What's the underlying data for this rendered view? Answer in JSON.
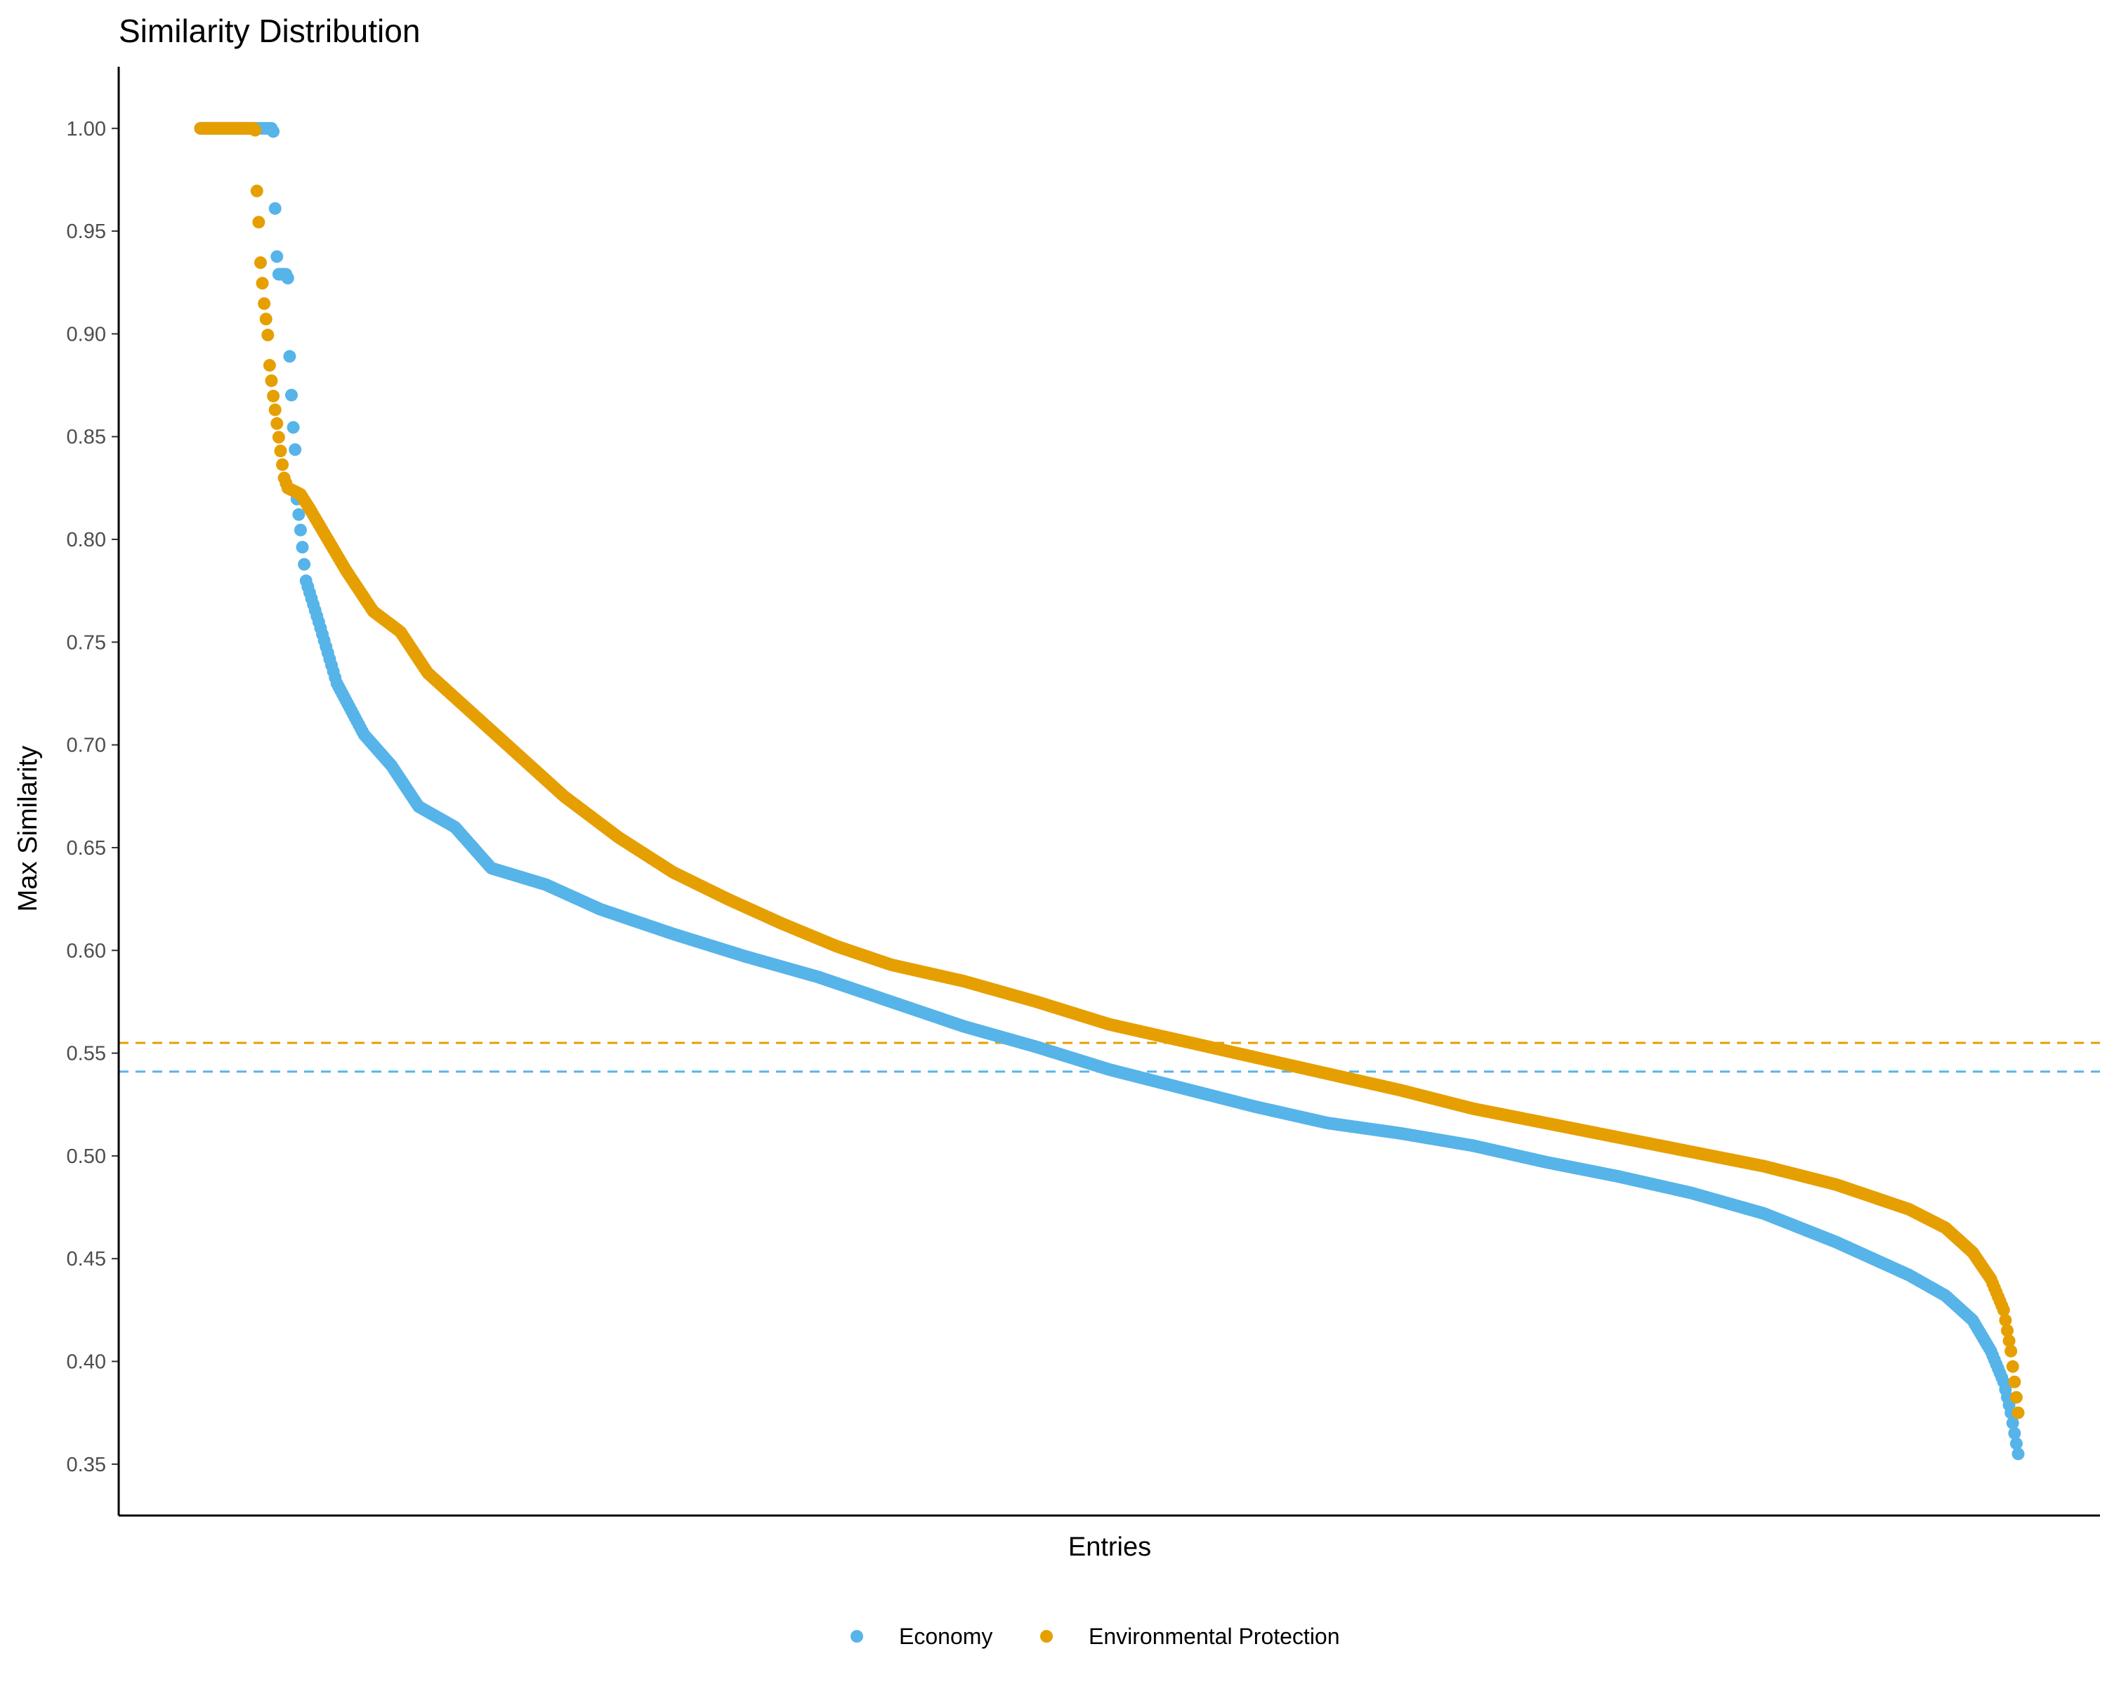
{
  "chart_data": {
    "type": "scatter",
    "title": "Similarity Distribution",
    "xlabel": "Entries",
    "ylabel": "Max Similarity",
    "ylim": [
      0.325,
      1.03
    ],
    "yticks": [
      "0.35",
      "0.40",
      "0.45",
      "0.50",
      "0.55",
      "0.60",
      "0.65",
      "0.70",
      "0.75",
      "0.80",
      "0.85",
      "0.90",
      "0.95",
      "1.00"
    ],
    "xlim": [
      -45,
      1045
    ],
    "x_tick_labels": "none",
    "grid": false,
    "legend_position": "bottom",
    "series": [
      {
        "name": "Economy",
        "color": "#56B4E9",
        "mean": 0.541,
        "n_points": 1000,
        "curve": [
          [
            0,
            1.0
          ],
          [
            40,
            1.0
          ],
          [
            41,
            0.962
          ],
          [
            42,
            0.938
          ],
          [
            43,
            0.929
          ],
          [
            48,
            0.929
          ],
          [
            49,
            0.89
          ],
          [
            50,
            0.871
          ],
          [
            51,
            0.855
          ],
          [
            52,
            0.845
          ],
          [
            53,
            0.82
          ],
          [
            55,
            0.805
          ],
          [
            58,
            0.78
          ],
          [
            65,
            0.76
          ],
          [
            75,
            0.73
          ],
          [
            90,
            0.705
          ],
          [
            105,
            0.69
          ],
          [
            120,
            0.67
          ],
          [
            140,
            0.66
          ],
          [
            160,
            0.64
          ],
          [
            190,
            0.632
          ],
          [
            220,
            0.62
          ],
          [
            260,
            0.608
          ],
          [
            300,
            0.597
          ],
          [
            340,
            0.587
          ],
          [
            380,
            0.575
          ],
          [
            420,
            0.563
          ],
          [
            460,
            0.553
          ],
          [
            500,
            0.542
          ],
          [
            540,
            0.533
          ],
          [
            580,
            0.524
          ],
          [
            620,
            0.516
          ],
          [
            660,
            0.511
          ],
          [
            700,
            0.505
          ],
          [
            740,
            0.497
          ],
          [
            780,
            0.49
          ],
          [
            820,
            0.482
          ],
          [
            860,
            0.472
          ],
          [
            900,
            0.458
          ],
          [
            940,
            0.442
          ],
          [
            960,
            0.432
          ],
          [
            975,
            0.42
          ],
          [
            985,
            0.405
          ],
          [
            992,
            0.39
          ],
          [
            996,
            0.375
          ],
          [
            998,
            0.365
          ],
          [
            1000,
            0.355
          ]
        ]
      },
      {
        "name": "Environmental Protection",
        "color": "#E69F00",
        "mean": 0.555,
        "n_points": 1000,
        "curve": [
          [
            0,
            1.0
          ],
          [
            30,
            1.0
          ],
          [
            31,
            0.97
          ],
          [
            32,
            0.955
          ],
          [
            33,
            0.935
          ],
          [
            35,
            0.915
          ],
          [
            37,
            0.9
          ],
          [
            38,
            0.885
          ],
          [
            40,
            0.87
          ],
          [
            43,
            0.85
          ],
          [
            46,
            0.83
          ],
          [
            48,
            0.825
          ],
          [
            55,
            0.822
          ],
          [
            60,
            0.815
          ],
          [
            70,
            0.8
          ],
          [
            80,
            0.785
          ],
          [
            95,
            0.765
          ],
          [
            110,
            0.755
          ],
          [
            125,
            0.735
          ],
          [
            150,
            0.715
          ],
          [
            175,
            0.695
          ],
          [
            200,
            0.675
          ],
          [
            230,
            0.655
          ],
          [
            260,
            0.638
          ],
          [
            290,
            0.625
          ],
          [
            320,
            0.613
          ],
          [
            350,
            0.602
          ],
          [
            380,
            0.593
          ],
          [
            420,
            0.585
          ],
          [
            460,
            0.575
          ],
          [
            500,
            0.564
          ],
          [
            540,
            0.556
          ],
          [
            580,
            0.548
          ],
          [
            620,
            0.54
          ],
          [
            660,
            0.532
          ],
          [
            700,
            0.523
          ],
          [
            740,
            0.516
          ],
          [
            780,
            0.509
          ],
          [
            820,
            0.502
          ],
          [
            860,
            0.495
          ],
          [
            900,
            0.486
          ],
          [
            940,
            0.474
          ],
          [
            960,
            0.465
          ],
          [
            975,
            0.453
          ],
          [
            985,
            0.44
          ],
          [
            992,
            0.425
          ],
          [
            996,
            0.405
          ],
          [
            998,
            0.39
          ],
          [
            1000,
            0.375
          ]
        ]
      }
    ]
  }
}
